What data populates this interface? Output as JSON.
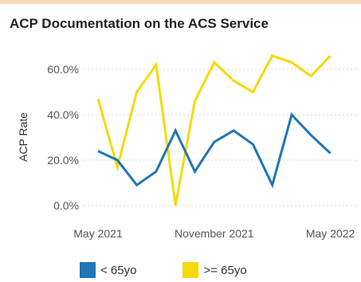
{
  "chart_data": {
    "type": "line",
    "title": "ACP Documentation on the ACS Service",
    "ylabel": "ACP Rate",
    "xlabel": "",
    "ylim": [
      0,
      0.65
    ],
    "yticks": [
      "0.0%",
      "20.0%",
      "40.0%",
      "60.0%"
    ],
    "xticks": [
      "May 2021",
      "November 2021",
      "May 2022"
    ],
    "grid": "horizontal dashed",
    "legend": "bottom",
    "series": [
      {
        "name": "< 65yo",
        "color": "#1f77b4",
        "values": [
          0.24,
          0.2,
          0.09,
          0.15,
          0.33,
          0.15,
          0.28,
          0.33,
          0.27,
          0.09,
          0.4,
          0.31,
          0.23
        ]
      },
      {
        "name": ">= 65yo",
        "color": "#f5d90a",
        "values": [
          0.47,
          0.17,
          0.5,
          0.62,
          0.0,
          0.46,
          0.63,
          0.55,
          0.5,
          0.66,
          0.63,
          0.57,
          0.66
        ]
      }
    ]
  }
}
